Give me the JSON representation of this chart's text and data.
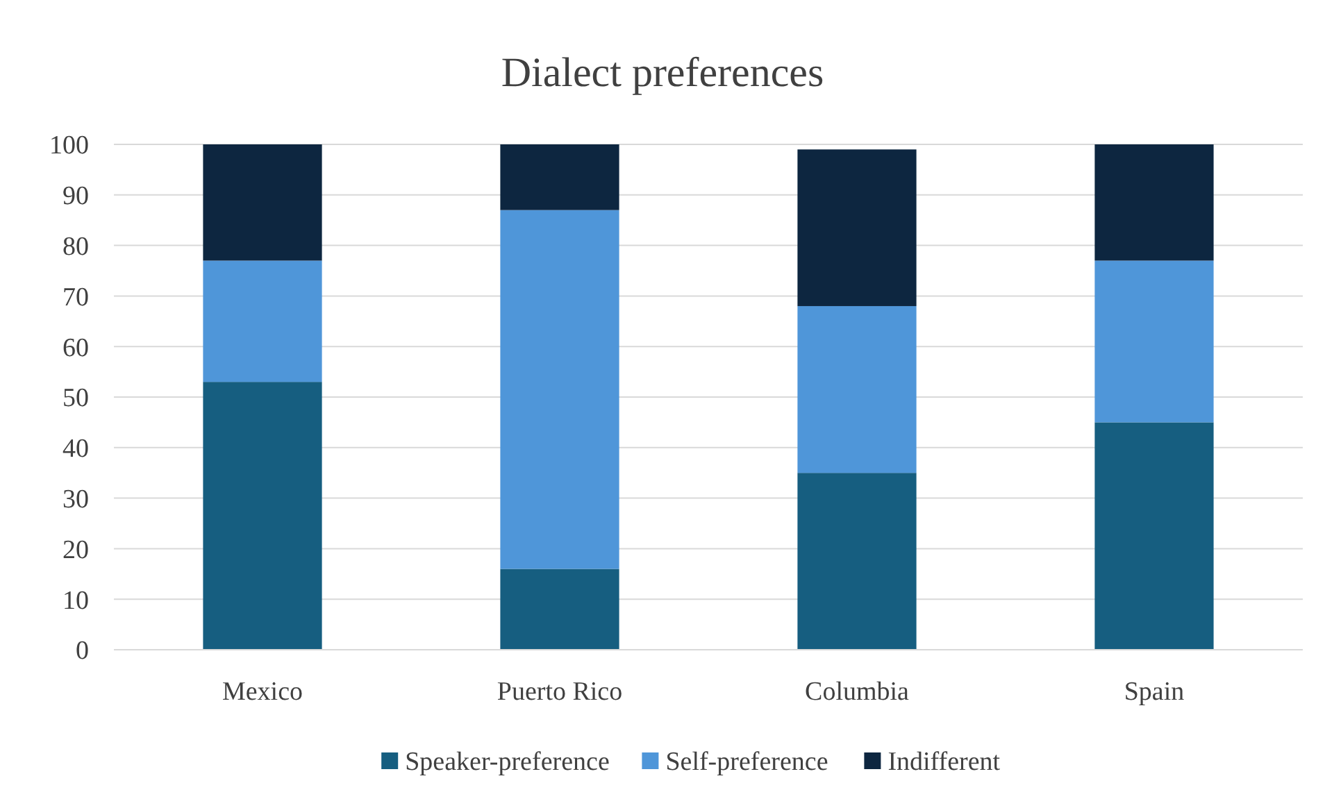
{
  "chart_data": {
    "type": "bar",
    "title": "Dialect preferences",
    "stacked": true,
    "categories": [
      "Mexico",
      "Puerto Rico",
      "Columbia",
      "Spain"
    ],
    "series": [
      {
        "name": "Speaker-preference",
        "color": "#165e80",
        "values": [
          53,
          16,
          35,
          45
        ]
      },
      {
        "name": "Self-preference",
        "color": "#4f96d9",
        "values": [
          24,
          71,
          33,
          32
        ]
      },
      {
        "name": "Indifferent",
        "color": "#0d2640",
        "values": [
          23,
          13,
          31,
          23
        ]
      }
    ],
    "ylim": [
      0,
      100
    ],
    "yticks": [
      0,
      10,
      20,
      30,
      40,
      50,
      60,
      70,
      80,
      90,
      100
    ],
    "grid": "y",
    "legend": "bottom"
  }
}
